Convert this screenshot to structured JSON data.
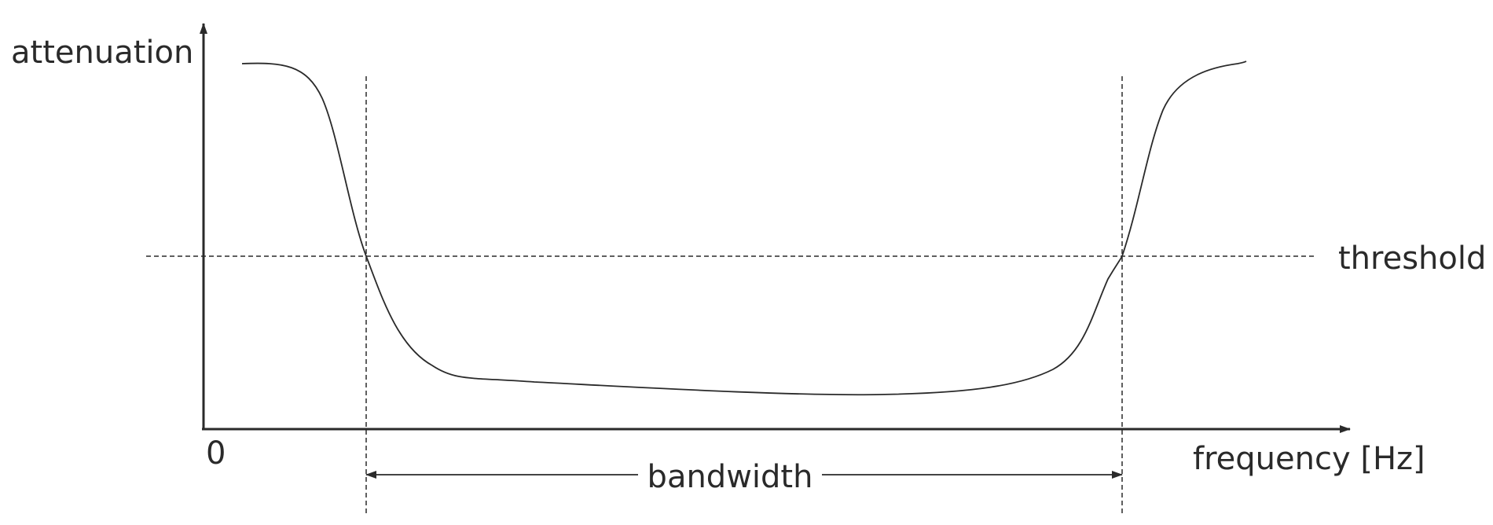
{
  "diagram": {
    "y_axis_label": "attenuation",
    "x_axis_label": "frequency [Hz]",
    "origin_label": "0",
    "threshold_label": "threshold",
    "bandwidth_label": "bandwidth"
  },
  "colors": {
    "ink": "#2a2a2a"
  }
}
